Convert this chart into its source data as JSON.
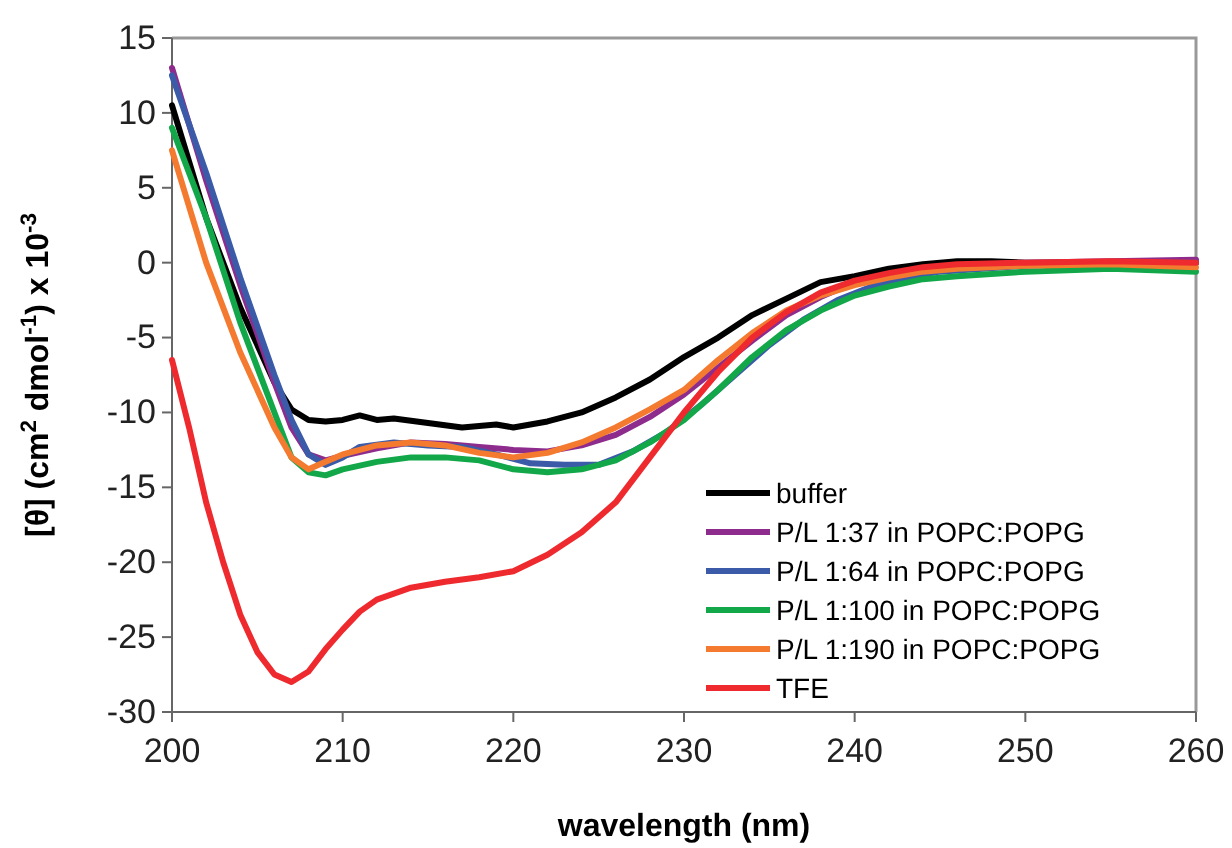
{
  "chart_data": {
    "type": "line",
    "xlabel": "wavelength (nm)",
    "ylabel": "[θ] (cm$^{2}$ dmol$^{-1}$) x 10$^{-3}$",
    "xlim": [
      200,
      260
    ],
    "xticks": [
      200,
      210,
      220,
      230,
      240,
      250,
      260
    ],
    "ylim": [
      -30,
      15
    ],
    "yticks": [
      -30,
      -25,
      -20,
      -15,
      -10,
      -5,
      0,
      5,
      10,
      15
    ],
    "grid": false,
    "legend": "bottom right",
    "marker": "none",
    "line_style": "solid",
    "series": [
      {
        "name": "buffer",
        "color": "#000000",
        "x": [
          200,
          202,
          204,
          206,
          207,
          208,
          209,
          210,
          211,
          212,
          213,
          215,
          217,
          219,
          220,
          222,
          224,
          226,
          228,
          230,
          232,
          234,
          236,
          238,
          240,
          242,
          244,
          246,
          248,
          250,
          255,
          260
        ],
        "values": [
          10.5,
          3,
          -3,
          -8,
          -9.8,
          -10.5,
          -10.6,
          -10.5,
          -10.2,
          -10.5,
          -10.4,
          -10.7,
          -11,
          -10.8,
          -11,
          -10.6,
          -10,
          -9,
          -7.8,
          -6.3,
          -5,
          -3.5,
          -2.4,
          -1.3,
          -0.9,
          -0.4,
          -0.1,
          0.1,
          0.1,
          0,
          0,
          0
        ]
      },
      {
        "name": "P/L 1:37 in POPC:POPG",
        "color": "#8e2c8e",
        "x": [
          200,
          202,
          204,
          206,
          207,
          208,
          209,
          210,
          212,
          214,
          216,
          218,
          220,
          222,
          224,
          226,
          228,
          230,
          232,
          234,
          236,
          238,
          240,
          242,
          244,
          246,
          250,
          255,
          260
        ],
        "values": [
          13,
          5.5,
          -1.5,
          -8,
          -11,
          -12.8,
          -13.2,
          -12.9,
          -12.4,
          -12,
          -12.1,
          -12.3,
          -12.5,
          -12.6,
          -12.2,
          -11.5,
          -10.3,
          -8.8,
          -7,
          -5.2,
          -3.5,
          -2.3,
          -1.3,
          -0.8,
          -0.4,
          -0.2,
          0,
          0.1,
          0.2
        ]
      },
      {
        "name": "P/L 1:64 in POPC:POPG",
        "color": "#3b5ba9",
        "x": [
          200,
          202,
          204,
          206,
          207,
          208,
          209,
          210,
          211,
          213,
          215,
          217,
          219,
          221,
          223,
          225,
          227,
          229,
          231,
          233,
          235,
          237,
          239,
          241,
          243,
          245,
          250,
          255,
          260
        ],
        "values": [
          12.5,
          6,
          -1,
          -7.5,
          -10.5,
          -12.8,
          -13.5,
          -13,
          -12.3,
          -12,
          -12.2,
          -12.3,
          -12.8,
          -13.4,
          -13.5,
          -13.5,
          -12.6,
          -11.3,
          -9.5,
          -7.5,
          -5.5,
          -3.8,
          -2.5,
          -1.6,
          -1,
          -0.6,
          -0.2,
          0,
          0
        ]
      },
      {
        "name": "P/L 1:100 in POPC:POPG",
        "color": "#12a84a",
        "x": [
          200,
          202,
          204,
          206,
          207,
          208,
          209,
          210,
          212,
          214,
          216,
          218,
          220,
          222,
          224,
          226,
          228,
          230,
          232,
          234,
          236,
          238,
          240,
          242,
          244,
          246,
          250,
          255,
          260
        ],
        "values": [
          9,
          3,
          -4,
          -10,
          -13,
          -14,
          -14.2,
          -13.8,
          -13.3,
          -13,
          -13,
          -13.2,
          -13.8,
          -14,
          -13.8,
          -13.2,
          -12,
          -10.5,
          -8.5,
          -6.3,
          -4.5,
          -3.2,
          -2.2,
          -1.6,
          -1.1,
          -0.9,
          -0.6,
          -0.4,
          -0.6
        ]
      },
      {
        "name": "P/L 1:190 in POPC:POPG",
        "color": "#f47a30",
        "x": [
          200,
          202,
          204,
          206,
          207,
          208,
          209,
          210,
          212,
          214,
          216,
          218,
          220,
          222,
          224,
          226,
          228,
          230,
          232,
          234,
          236,
          238,
          240,
          242,
          244,
          246,
          250,
          255,
          260
        ],
        "values": [
          7.5,
          0,
          -6,
          -11,
          -13,
          -13.8,
          -13.3,
          -12.8,
          -12.2,
          -12,
          -12.2,
          -12.7,
          -13,
          -12.7,
          -12,
          -11,
          -9.8,
          -8.5,
          -6.5,
          -4.7,
          -3.2,
          -2.2,
          -1.5,
          -1,
          -0.6,
          -0.4,
          -0.2,
          -0.1,
          -0.3
        ]
      },
      {
        "name": "TFE",
        "color": "#ee2a2e",
        "x": [
          200,
          201,
          202,
          203,
          204,
          205,
          206,
          207,
          208,
          209,
          210,
          211,
          212,
          214,
          216,
          218,
          220,
          222,
          224,
          226,
          228,
          230,
          232,
          234,
          236,
          238,
          240,
          242,
          244,
          246,
          250,
          255,
          260
        ],
        "values": [
          -6.5,
          -11,
          -16,
          -20,
          -23.5,
          -26,
          -27.5,
          -28,
          -27.3,
          -25.8,
          -24.5,
          -23.3,
          -22.5,
          -21.7,
          -21.3,
          -21,
          -20.6,
          -19.5,
          -18,
          -16,
          -13,
          -10,
          -7.3,
          -5,
          -3.3,
          -2,
          -1.2,
          -0.7,
          -0.3,
          -0.1,
          0,
          0.1,
          0
        ]
      }
    ]
  }
}
